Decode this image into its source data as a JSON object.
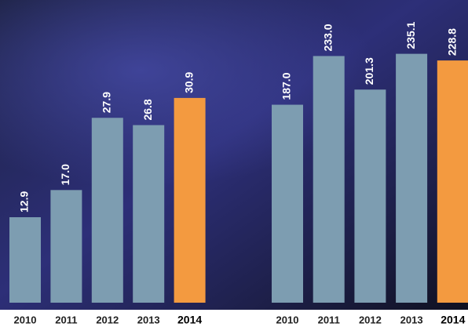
{
  "chart_data": [
    {
      "type": "bar",
      "categories": [
        "2010",
        "2011",
        "2012",
        "2013",
        "2014"
      ],
      "values": [
        12.9,
        17.0,
        27.9,
        26.8,
        30.9
      ],
      "value_labels": [
        "12.9",
        "17.0",
        "27.9",
        "26.8",
        "30.9"
      ],
      "colors": [
        "#7d9db1",
        "#7d9db1",
        "#7d9db1",
        "#7d9db1",
        "#f39a40"
      ]
    },
    {
      "type": "bar",
      "categories": [
        "2010",
        "2011",
        "2012",
        "2013",
        "2014"
      ],
      "values": [
        187.0,
        233.0,
        201.3,
        235.1,
        228.8
      ],
      "value_labels": [
        "187.0",
        "233.0",
        "201.3",
        "235.1",
        "228.8"
      ],
      "colors": [
        "#7d9db1",
        "#7d9db1",
        "#7d9db1",
        "#7d9db1",
        "#f39a40"
      ]
    }
  ]
}
